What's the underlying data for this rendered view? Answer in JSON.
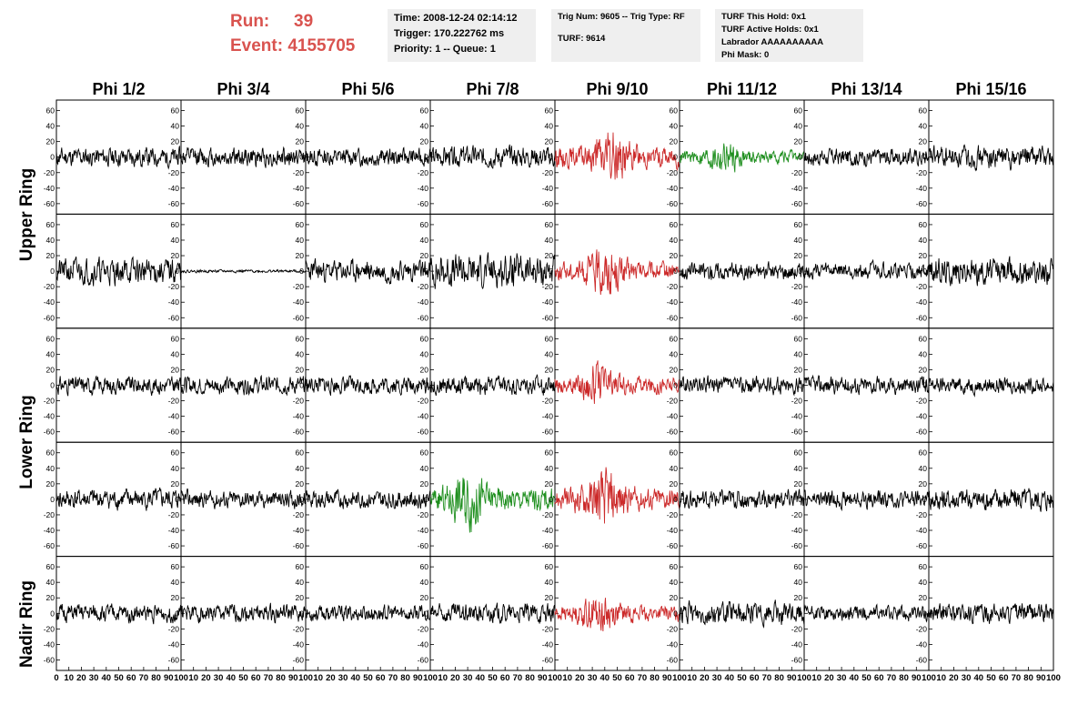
{
  "run": {
    "run_label": "Run:",
    "run_value": "39",
    "event_label": "Event:",
    "event_value": "4155705"
  },
  "info_time": {
    "time": "Time: 2008-12-24 02:14:12",
    "trigger": "Trigger: 170.222762 ms",
    "priority": "Priority: 1 -- Queue: 1"
  },
  "info_trig": {
    "trig": "Trig Num: 9605 -- Trig Type: RF",
    "turf": "TURF: 9614"
  },
  "info_turf": {
    "this_hold": "TURF This Hold: 0x1",
    "active_holds": "TURF Active Holds: 0x1",
    "labrador": "Labrador AAAAAAAAAA",
    "phi_mask": "Phi Mask: 0"
  },
  "row_titles": {
    "upper": "Upper Ring",
    "lower": "Lower Ring",
    "nadir": "Nadir Ring"
  },
  "colors": {
    "normal": "#000000",
    "red": "#cc2a2a",
    "green": "#1f8f1f",
    "info_bg": "#efefef",
    "run_text": "#d9534f"
  },
  "chart_data": {
    "type": "line",
    "columns": [
      "Phi 1/2",
      "Phi 3/4",
      "Phi 5/6",
      "Phi 7/8",
      "Phi 9/10",
      "Phi 11/12",
      "Phi 13/14",
      "Phi 15/16"
    ],
    "rows": 5,
    "ylim": [
      -70,
      70
    ],
    "yticks": [
      "60",
      "40",
      "20",
      "0",
      "-20",
      "-40",
      "-60"
    ],
    "xlim": [
      0,
      100
    ],
    "xticks_first": [
      "0",
      "10",
      "20",
      "30",
      "40",
      "50",
      "60",
      "70",
      "80",
      "90",
      "100"
    ],
    "xticks_other": [
      "10",
      "20",
      "30",
      "40",
      "50",
      "60",
      "70",
      "80",
      "90",
      "100"
    ],
    "panels": [
      [
        {
          "color": "normal",
          "amp": 13,
          "seed": 11
        },
        {
          "color": "normal",
          "amp": 13,
          "seed": 12
        },
        {
          "color": "normal",
          "amp": 12,
          "seed": 13
        },
        {
          "color": "normal",
          "amp": 14,
          "seed": 14
        },
        {
          "color": "red",
          "amp": 20,
          "seed": 15,
          "burst": 0.45
        },
        {
          "color": "green",
          "amp": 12,
          "seed": 16,
          "burst": 0.35
        },
        {
          "color": "normal",
          "amp": 12,
          "seed": 17
        },
        {
          "color": "normal",
          "amp": 15,
          "seed": 18
        }
      ],
      [
        {
          "color": "normal",
          "amp": 18,
          "seed": 21
        },
        {
          "color": "normal",
          "amp": 2,
          "seed": 22
        },
        {
          "color": "normal",
          "amp": 15,
          "seed": 23
        },
        {
          "color": "normal",
          "amp": 22,
          "seed": 24
        },
        {
          "color": "red",
          "amp": 18,
          "seed": 25,
          "burst": 0.4
        },
        {
          "color": "normal",
          "amp": 12,
          "seed": 26
        },
        {
          "color": "normal",
          "amp": 11,
          "seed": 27
        },
        {
          "color": "normal",
          "amp": 18,
          "seed": 28
        }
      ],
      [
        {
          "color": "normal",
          "amp": 12,
          "seed": 31
        },
        {
          "color": "normal",
          "amp": 12,
          "seed": 32
        },
        {
          "color": "normal",
          "amp": 12,
          "seed": 33
        },
        {
          "color": "normal",
          "amp": 13,
          "seed": 34
        },
        {
          "color": "red",
          "amp": 16,
          "seed": 35,
          "burst": 0.35
        },
        {
          "color": "normal",
          "amp": 12,
          "seed": 36
        },
        {
          "color": "normal",
          "amp": 12,
          "seed": 37
        },
        {
          "color": "normal",
          "amp": 11,
          "seed": 38
        }
      ],
      [
        {
          "color": "normal",
          "amp": 14,
          "seed": 41
        },
        {
          "color": "normal",
          "amp": 12,
          "seed": 42
        },
        {
          "color": "normal",
          "amp": 12,
          "seed": 43
        },
        {
          "color": "green",
          "amp": 22,
          "seed": 44,
          "burst": 0.3
        },
        {
          "color": "red",
          "amp": 22,
          "seed": 45,
          "burst": 0.4
        },
        {
          "color": "normal",
          "amp": 13,
          "seed": 46
        },
        {
          "color": "normal",
          "amp": 12,
          "seed": 47
        },
        {
          "color": "normal",
          "amp": 16,
          "seed": 48
        }
      ],
      [
        {
          "color": "normal",
          "amp": 12,
          "seed": 51
        },
        {
          "color": "normal",
          "amp": 12,
          "seed": 52
        },
        {
          "color": "normal",
          "amp": 11,
          "seed": 53
        },
        {
          "color": "normal",
          "amp": 13,
          "seed": 54
        },
        {
          "color": "red",
          "amp": 15,
          "seed": 55,
          "burst": 0.35
        },
        {
          "color": "normal",
          "amp": 15,
          "seed": 56
        },
        {
          "color": "normal",
          "amp": 10,
          "seed": 57
        },
        {
          "color": "normal",
          "amp": 13,
          "seed": 58
        }
      ]
    ]
  }
}
